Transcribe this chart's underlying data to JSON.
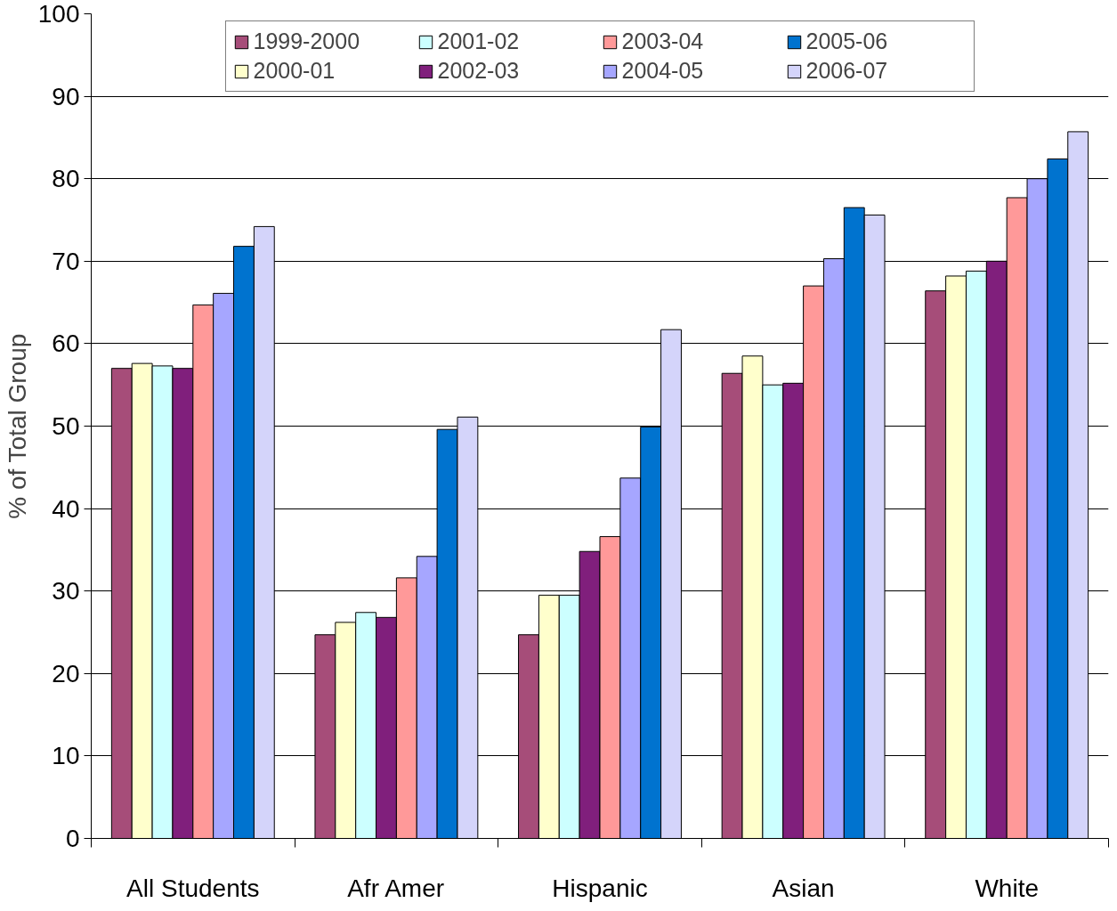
{
  "chart_data": {
    "type": "bar",
    "ylabel": "% of Total Group",
    "categories": [
      "All Students",
      "Afr Amer",
      "Hispanic",
      "Asian",
      "White"
    ],
    "series": [
      {
        "name": "1999-2000",
        "color": "#a64d79",
        "values": [
          57.0,
          24.7,
          24.7,
          56.4,
          66.4
        ]
      },
      {
        "name": "2000-01",
        "color": "#ffffcc",
        "values": [
          57.6,
          26.2,
          29.5,
          58.5,
          68.2
        ]
      },
      {
        "name": "2001-02",
        "color": "#ccffff",
        "values": [
          57.3,
          27.4,
          29.5,
          55.0,
          68.8
        ]
      },
      {
        "name": "2002-03",
        "color": "#801f7c",
        "values": [
          57.0,
          26.8,
          34.8,
          55.2,
          70.0
        ]
      },
      {
        "name": "2003-04",
        "color": "#ff9999",
        "values": [
          64.7,
          31.6,
          36.6,
          67.0,
          77.7
        ]
      },
      {
        "name": "2004-05",
        "color": "#a6a6ff",
        "values": [
          66.1,
          34.2,
          43.7,
          70.3,
          80.0
        ]
      },
      {
        "name": "2005-06",
        "color": "#0073cf",
        "values": [
          71.8,
          49.6,
          49.9,
          76.5,
          82.4
        ]
      },
      {
        "name": "2006-07",
        "color": "#d4d4fa",
        "values": [
          74.2,
          51.1,
          61.7,
          75.6,
          85.7
        ]
      }
    ],
    "ylim": [
      0,
      100
    ],
    "yticks": [
      0,
      10,
      20,
      30,
      40,
      50,
      60,
      70,
      80,
      90,
      100
    ],
    "grid": "y",
    "legend": "top"
  }
}
